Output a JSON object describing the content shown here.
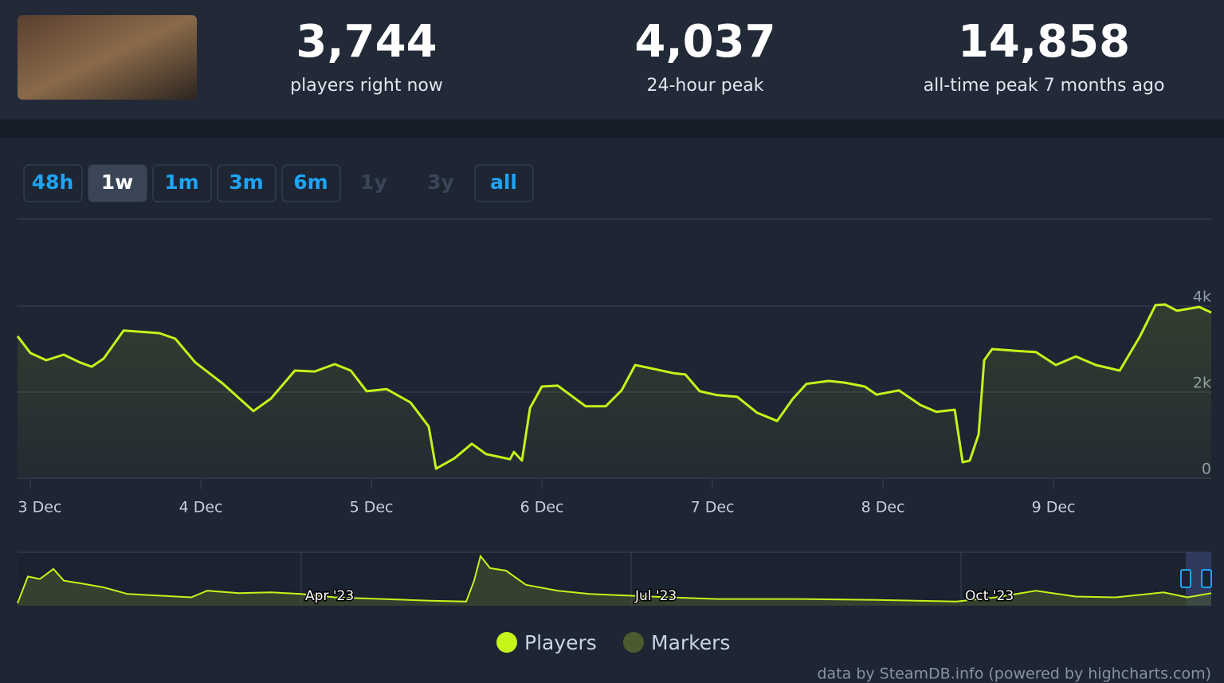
{
  "stats": [
    {
      "value": "3,744",
      "label": "players right now"
    },
    {
      "value": "4,037",
      "label": "24-hour peak"
    },
    {
      "value": "14,858",
      "label": "all-time peak 7 months ago"
    }
  ],
  "ranges": [
    {
      "label": "48h",
      "state": "normal"
    },
    {
      "label": "1w",
      "state": "active"
    },
    {
      "label": "1m",
      "state": "normal"
    },
    {
      "label": "3m",
      "state": "normal"
    },
    {
      "label": "6m",
      "state": "normal"
    },
    {
      "label": "1y",
      "state": "disabled"
    },
    {
      "label": "3y",
      "state": "disabled"
    },
    {
      "label": "all",
      "state": "normal"
    }
  ],
  "credits": "data by SteamDB.info (powered by highcharts.com)",
  "chart_data": [
    {
      "type": "line",
      "xlim": [
        2.925,
        9.925
      ],
      "xticks": [
        {
          "value": 3,
          "label": "3 Dec"
        },
        {
          "value": 4,
          "label": "4 Dec"
        },
        {
          "value": 5,
          "label": "5 Dec"
        },
        {
          "value": 6,
          "label": "6 Dec"
        },
        {
          "value": 7,
          "label": "7 Dec"
        },
        {
          "value": 8,
          "label": "8 Dec"
        },
        {
          "value": 9,
          "label": "9 Dec"
        }
      ],
      "ylim": [
        0,
        6000
      ],
      "yticks": [
        0,
        {
          "value": 2000,
          "label": "2k"
        },
        {
          "value": 4000,
          "label": "4k"
        }
      ],
      "grid": true,
      "series": [
        {
          "name": "Players",
          "color": "#c4f41a",
          "x": [
            2.925,
            3.0,
            3.093,
            3.196,
            3.29,
            3.36,
            3.43,
            3.547,
            3.757,
            3.85,
            3.967,
            4.131,
            4.308,
            4.411,
            4.551,
            4.668,
            4.785,
            4.879,
            4.972,
            5.089,
            5.229,
            5.336,
            5.379,
            5.486,
            5.589,
            5.673,
            5.813,
            5.836,
            5.883,
            5.93,
            6.0,
            6.093,
            6.257,
            6.374,
            6.467,
            6.547,
            6.654,
            6.771,
            6.841,
            6.925,
            7.028,
            7.145,
            7.262,
            7.379,
            7.472,
            7.551,
            7.682,
            7.776,
            7.893,
            7.963,
            8.093,
            8.22,
            8.313,
            8.421,
            8.467,
            8.509,
            8.561,
            8.593,
            8.64,
            8.78,
            8.897,
            9.014,
            9.131,
            9.248,
            9.388,
            9.505,
            9.598,
            9.654,
            9.724,
            9.855,
            9.925
          ],
          "values": [
            3300,
            2910,
            2740,
            2870,
            2690,
            2590,
            2780,
            3430,
            3370,
            3240,
            2690,
            2190,
            1560,
            1850,
            2500,
            2480,
            2650,
            2500,
            2020,
            2070,
            1760,
            1200,
            220,
            460,
            800,
            560,
            440,
            610,
            410,
            1630,
            2130,
            2150,
            1670,
            1670,
            2040,
            2630,
            2540,
            2440,
            2410,
            2020,
            1930,
            1890,
            1520,
            1330,
            1850,
            2190,
            2260,
            2220,
            2130,
            1940,
            2040,
            1700,
            1540,
            1590,
            370,
            410,
            1020,
            2740,
            3000,
            2960,
            2930,
            2630,
            2830,
            2630,
            2500,
            3280,
            4020,
            4037,
            3890,
            3980,
            3850
          ]
        }
      ],
      "markers_legend": {
        "name": "Markers",
        "color": "#4b5a2f"
      }
    },
    {
      "type": "navigator",
      "xlim": [
        0.42,
        11.275
      ],
      "xticks": [
        {
          "value": 3,
          "label": "Apr '23"
        },
        {
          "value": 6,
          "label": "Jul '23"
        },
        {
          "value": 9,
          "label": "Oct '23"
        }
      ],
      "ylim": [
        0,
        16000
      ],
      "series": [
        {
          "color": "#c4f41a",
          "x": [
            0.42,
            0.514,
            0.623,
            0.746,
            0.841,
            0.986,
            1.203,
            1.42,
            1.71,
            2.0,
            2.145,
            2.435,
            2.725,
            3.0,
            3.304,
            3.739,
            4.174,
            4.5,
            4.572,
            4.63,
            4.717,
            4.862,
            5.043,
            5.333,
            5.623,
            5.986,
            6.348,
            6.783,
            7.507,
            8.232,
            8.957,
            9.319,
            9.681,
            10.043,
            10.406,
            10.841,
            11.058,
            11.275
          ],
          "values": [
            750,
            8750,
            8000,
            11000,
            7500,
            6750,
            5500,
            3500,
            3000,
            2500,
            4500,
            3750,
            4000,
            3500,
            2500,
            2000,
            1500,
            1250,
            7500,
            14858,
            11250,
            10500,
            6250,
            4500,
            3500,
            3000,
            2500,
            2000,
            2000,
            1750,
            1250,
            2500,
            4500,
            2750,
            2500,
            4000,
            2500,
            3750
          ]
        }
      ]
    }
  ]
}
